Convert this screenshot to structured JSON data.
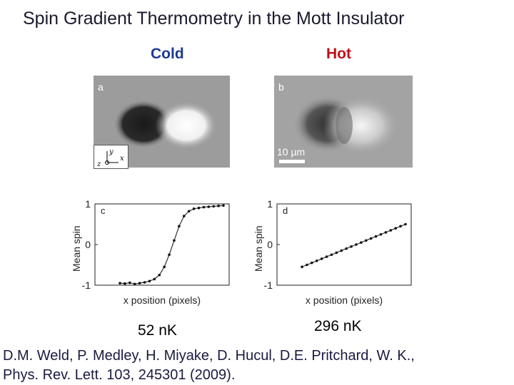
{
  "title": "Spin Gradient Thermometry in the Mott Insulator",
  "columns": {
    "cold": {
      "label": "Cold",
      "color": "#1f3a93"
    },
    "hot": {
      "label": "Hot",
      "color": "#c0101a"
    }
  },
  "panels": {
    "a": {
      "letter": "a"
    },
    "b": {
      "letter": "b",
      "scalebar": "10 µm"
    },
    "c": {
      "letter": "c"
    },
    "d": {
      "letter": "d"
    }
  },
  "axes": {
    "y_label": "Mean spin",
    "x_label": "x position (pixels)",
    "yticks": [
      "1",
      "0",
      "-1"
    ],
    "axis_y": "y",
    "axis_x": "x",
    "axis_z": "z"
  },
  "temperatures": {
    "cold": "52 nK",
    "hot": "296 nK"
  },
  "citation": {
    "line1": "D.M. Weld, P. Medley, H. Miyake, D. Hucul, D.E. Pritchard, W. K.,",
    "line2": "Phys. Rev. Lett. 103, 245301 (2009)."
  },
  "chart_data": [
    {
      "type": "scatter",
      "panel": "c",
      "ylabel": "Mean spin",
      "xlabel": "x position (pixels)",
      "ylim": [
        -1,
        1
      ],
      "shape": "sigmoid step",
      "series": [
        {
          "values": [
            -0.95,
            -0.96,
            -0.94,
            -0.97,
            -0.95,
            -0.93,
            -0.9,
            -0.85,
            -0.75,
            -0.55,
            -0.25,
            0.1,
            0.45,
            0.7,
            0.82,
            0.88,
            0.9,
            0.92,
            0.93,
            0.94,
            0.95,
            0.96
          ]
        }
      ]
    },
    {
      "type": "scatter",
      "panel": "d",
      "ylabel": "Mean spin",
      "xlabel": "x position (pixels)",
      "ylim": [
        -1,
        1
      ],
      "shape": "linear",
      "series": [
        {
          "values": [
            -0.55,
            -0.5,
            -0.45,
            -0.4,
            -0.35,
            -0.3,
            -0.25,
            -0.2,
            -0.15,
            -0.1,
            -0.05,
            0.0,
            0.05,
            0.1,
            0.15,
            0.2,
            0.25,
            0.3,
            0.35,
            0.4,
            0.45,
            0.5
          ]
        }
      ]
    }
  ]
}
